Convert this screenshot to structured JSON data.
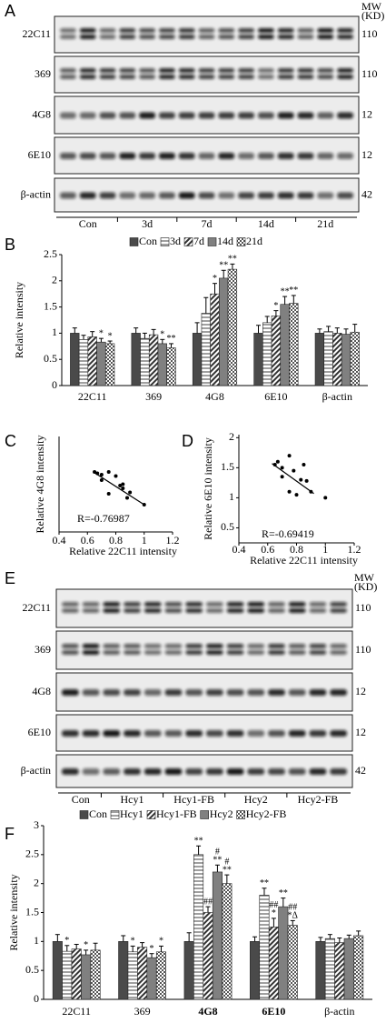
{
  "blots": [
    {
      "label": "A",
      "mw_header": [
        "MW",
        "(KD)"
      ],
      "rows": [
        {
          "label": "22C11",
          "mw": "110"
        },
        {
          "label": "369",
          "mw": "110"
        },
        {
          "label": "4G8",
          "mw": "12"
        },
        {
          "label": "6E10",
          "mw": "12"
        },
        {
          "label": "β-actin",
          "mw": "42"
        }
      ],
      "groups": [
        "Con",
        "3d",
        "7d",
        "14d",
        "21d"
      ]
    },
    {
      "label": "E",
      "mw_header": [
        "MW",
        "(KD)"
      ],
      "rows": [
        {
          "label": "22C11",
          "mw": "110"
        },
        {
          "label": "369",
          "mw": "110"
        },
        {
          "label": "4G8",
          "mw": "12"
        },
        {
          "label": "6E10",
          "mw": "12"
        },
        {
          "label": "β-actin",
          "mw": "42"
        }
      ],
      "groups": [
        "Con",
        "Hcy1",
        "Hcy1-FB",
        "Hcy2",
        "Hcy2-FB"
      ]
    }
  ],
  "chart_data": [
    {
      "label": "B",
      "type": "bar",
      "ylabel": "Relative intensity",
      "categories": [
        "22C11",
        "369",
        "4G8",
        "6E10",
        "β-actin"
      ],
      "category_bold": [
        false,
        false,
        false,
        false,
        false
      ],
      "series": [
        {
          "name": "Con",
          "color": "#4a4a4a",
          "pattern": "solid",
          "values": [
            1.0,
            1.0,
            1.0,
            1.0,
            1.0
          ],
          "errors": [
            0.1,
            0.1,
            0.2,
            0.15,
            0.08
          ],
          "annotations": [
            null,
            null,
            null,
            null,
            null
          ]
        },
        {
          "name": "3d",
          "color": "#6e6e6e",
          "pattern": "hlines",
          "values": [
            0.88,
            0.9,
            1.38,
            1.2,
            1.03
          ],
          "errors": [
            0.08,
            0.1,
            0.3,
            0.12,
            0.1
          ],
          "annotations": [
            null,
            null,
            null,
            null,
            null
          ]
        },
        {
          "name": "7d",
          "color": "#333333",
          "pattern": "diag",
          "values": [
            0.93,
            0.97,
            1.75,
            1.33,
            1.0
          ],
          "errors": [
            0.1,
            0.1,
            0.2,
            0.1,
            0.1
          ],
          "annotations": [
            null,
            null,
            [
              "*"
            ],
            [
              "*"
            ],
            null
          ]
        },
        {
          "name": "14d",
          "color": "#808080",
          "pattern": "solid",
          "values": [
            0.83,
            0.8,
            2.05,
            1.55,
            0.98
          ],
          "errors": [
            0.07,
            0.08,
            0.15,
            0.15,
            0.1
          ],
          "annotations": [
            [
              "*"
            ],
            [
              "*"
            ],
            [
              "**"
            ],
            [
              "**"
            ],
            null
          ]
        },
        {
          "name": "21d",
          "color": "#555555",
          "pattern": "check",
          "values": [
            0.8,
            0.72,
            2.22,
            1.57,
            1.02
          ],
          "errors": [
            0.05,
            0.08,
            0.1,
            0.15,
            0.15
          ],
          "annotations": [
            [
              "*"
            ],
            [
              "**"
            ],
            [
              "**"
            ],
            [
              "**"
            ],
            null
          ]
        }
      ],
      "ylim": [
        0,
        2.5
      ],
      "yticks": [
        0,
        0.5,
        1,
        1.5,
        2,
        2.5
      ],
      "legend": "top"
    },
    {
      "label": "C",
      "type": "scatter",
      "xlabel": "Relative 22C11 intensity",
      "ylabel": "Relative 4G8 intensity",
      "x": [
        0.65,
        0.67,
        0.7,
        0.75,
        0.8,
        0.85,
        0.83,
        0.7,
        0.75,
        0.85,
        0.9,
        0.88,
        1.0
      ],
      "values": [
        2.2,
        2.15,
        2.1,
        2.2,
        2.05,
        1.75,
        1.7,
        1.9,
        1.4,
        1.6,
        1.45,
        1.25,
        1.0
      ],
      "fit": {
        "x": [
          0.65,
          1.0
        ],
        "values": [
          2.17,
          1.0
        ]
      },
      "annotation": "R=-0.76987",
      "xlim": [
        0.4,
        1.2
      ],
      "xticks": [
        0.4,
        0.6,
        0.8,
        1,
        1.2
      ],
      "ylim": [
        0,
        3.5
      ]
    },
    {
      "label": "D",
      "type": "scatter",
      "xlabel": "Relative 22C11 intensity",
      "ylabel": "Relative 6E10 intensity",
      "x": [
        0.65,
        0.67,
        0.7,
        0.75,
        0.78,
        0.83,
        0.85,
        0.87,
        0.8,
        0.75,
        0.9,
        1.0,
        0.7
      ],
      "values": [
        1.55,
        1.6,
        1.5,
        1.7,
        1.45,
        1.3,
        1.55,
        1.28,
        1.05,
        1.1,
        1.1,
        1.0,
        1.35
      ],
      "fit": {
        "x": [
          0.63,
          0.92
        ],
        "values": [
          1.57,
          1.07
        ]
      },
      "annotation": "R=-0.69419",
      "xlim": [
        0.4,
        1.2
      ],
      "xticks": [
        0.4,
        0.6,
        0.8,
        1,
        1.2
      ],
      "ylim": [
        0.25,
        2.05
      ],
      "yticks": [
        0.5,
        1,
        1.5,
        2
      ]
    },
    {
      "label": "F",
      "type": "bar",
      "ylabel": "Relative intensity",
      "categories": [
        "22C11",
        "369",
        "4G8",
        "6E10",
        "β-actin"
      ],
      "category_bold": [
        false,
        false,
        true,
        true,
        false
      ],
      "series": [
        {
          "name": "Con",
          "color": "#4a4a4a",
          "pattern": "solid",
          "values": [
            1.0,
            1.0,
            1.0,
            1.0,
            1.0
          ],
          "errors": [
            0.12,
            0.1,
            0.15,
            0.08,
            0.07
          ],
          "annotations": [
            null,
            null,
            null,
            null,
            null
          ]
        },
        {
          "name": "Hcy1",
          "color": "#6e6e6e",
          "pattern": "hlines",
          "values": [
            0.83,
            0.82,
            2.5,
            1.8,
            1.05
          ],
          "errors": [
            0.1,
            0.1,
            0.15,
            0.12,
            0.07
          ],
          "annotations": [
            [
              "*"
            ],
            [
              "*"
            ],
            [
              "**"
            ],
            [
              "**"
            ],
            null
          ]
        },
        {
          "name": "Hcy1-FB",
          "color": "#333333",
          "pattern": "diag",
          "values": [
            0.87,
            0.9,
            1.5,
            1.25,
            0.98
          ],
          "errors": [
            0.08,
            0.08,
            0.1,
            0.15,
            0.08
          ],
          "annotations": [
            null,
            null,
            [
              "##"
            ],
            [
              "##",
              "*"
            ],
            null
          ]
        },
        {
          "name": "Hcy2",
          "color": "#808080",
          "pattern": "solid",
          "values": [
            0.77,
            0.72,
            2.2,
            1.6,
            1.05
          ],
          "errors": [
            0.08,
            0.07,
            0.12,
            0.15,
            0.06
          ],
          "annotations": [
            [
              "*"
            ],
            [
              "*"
            ],
            [
              "#",
              "**"
            ],
            [
              "**"
            ],
            null
          ]
        },
        {
          "name": "Hcy2-FB",
          "color": "#555555",
          "pattern": "check",
          "values": [
            0.85,
            0.82,
            2.0,
            1.28,
            1.1
          ],
          "errors": [
            0.12,
            0.1,
            0.15,
            0.08,
            0.08
          ],
          "annotations": [
            null,
            [
              "*"
            ],
            [
              "#",
              "**"
            ],
            [
              "##",
              "*Δ"
            ],
            null
          ]
        }
      ],
      "ylim": [
        0,
        3
      ],
      "yticks": [
        0,
        0.5,
        1,
        1.5,
        2,
        2.5,
        3
      ],
      "legend": "top"
    }
  ]
}
